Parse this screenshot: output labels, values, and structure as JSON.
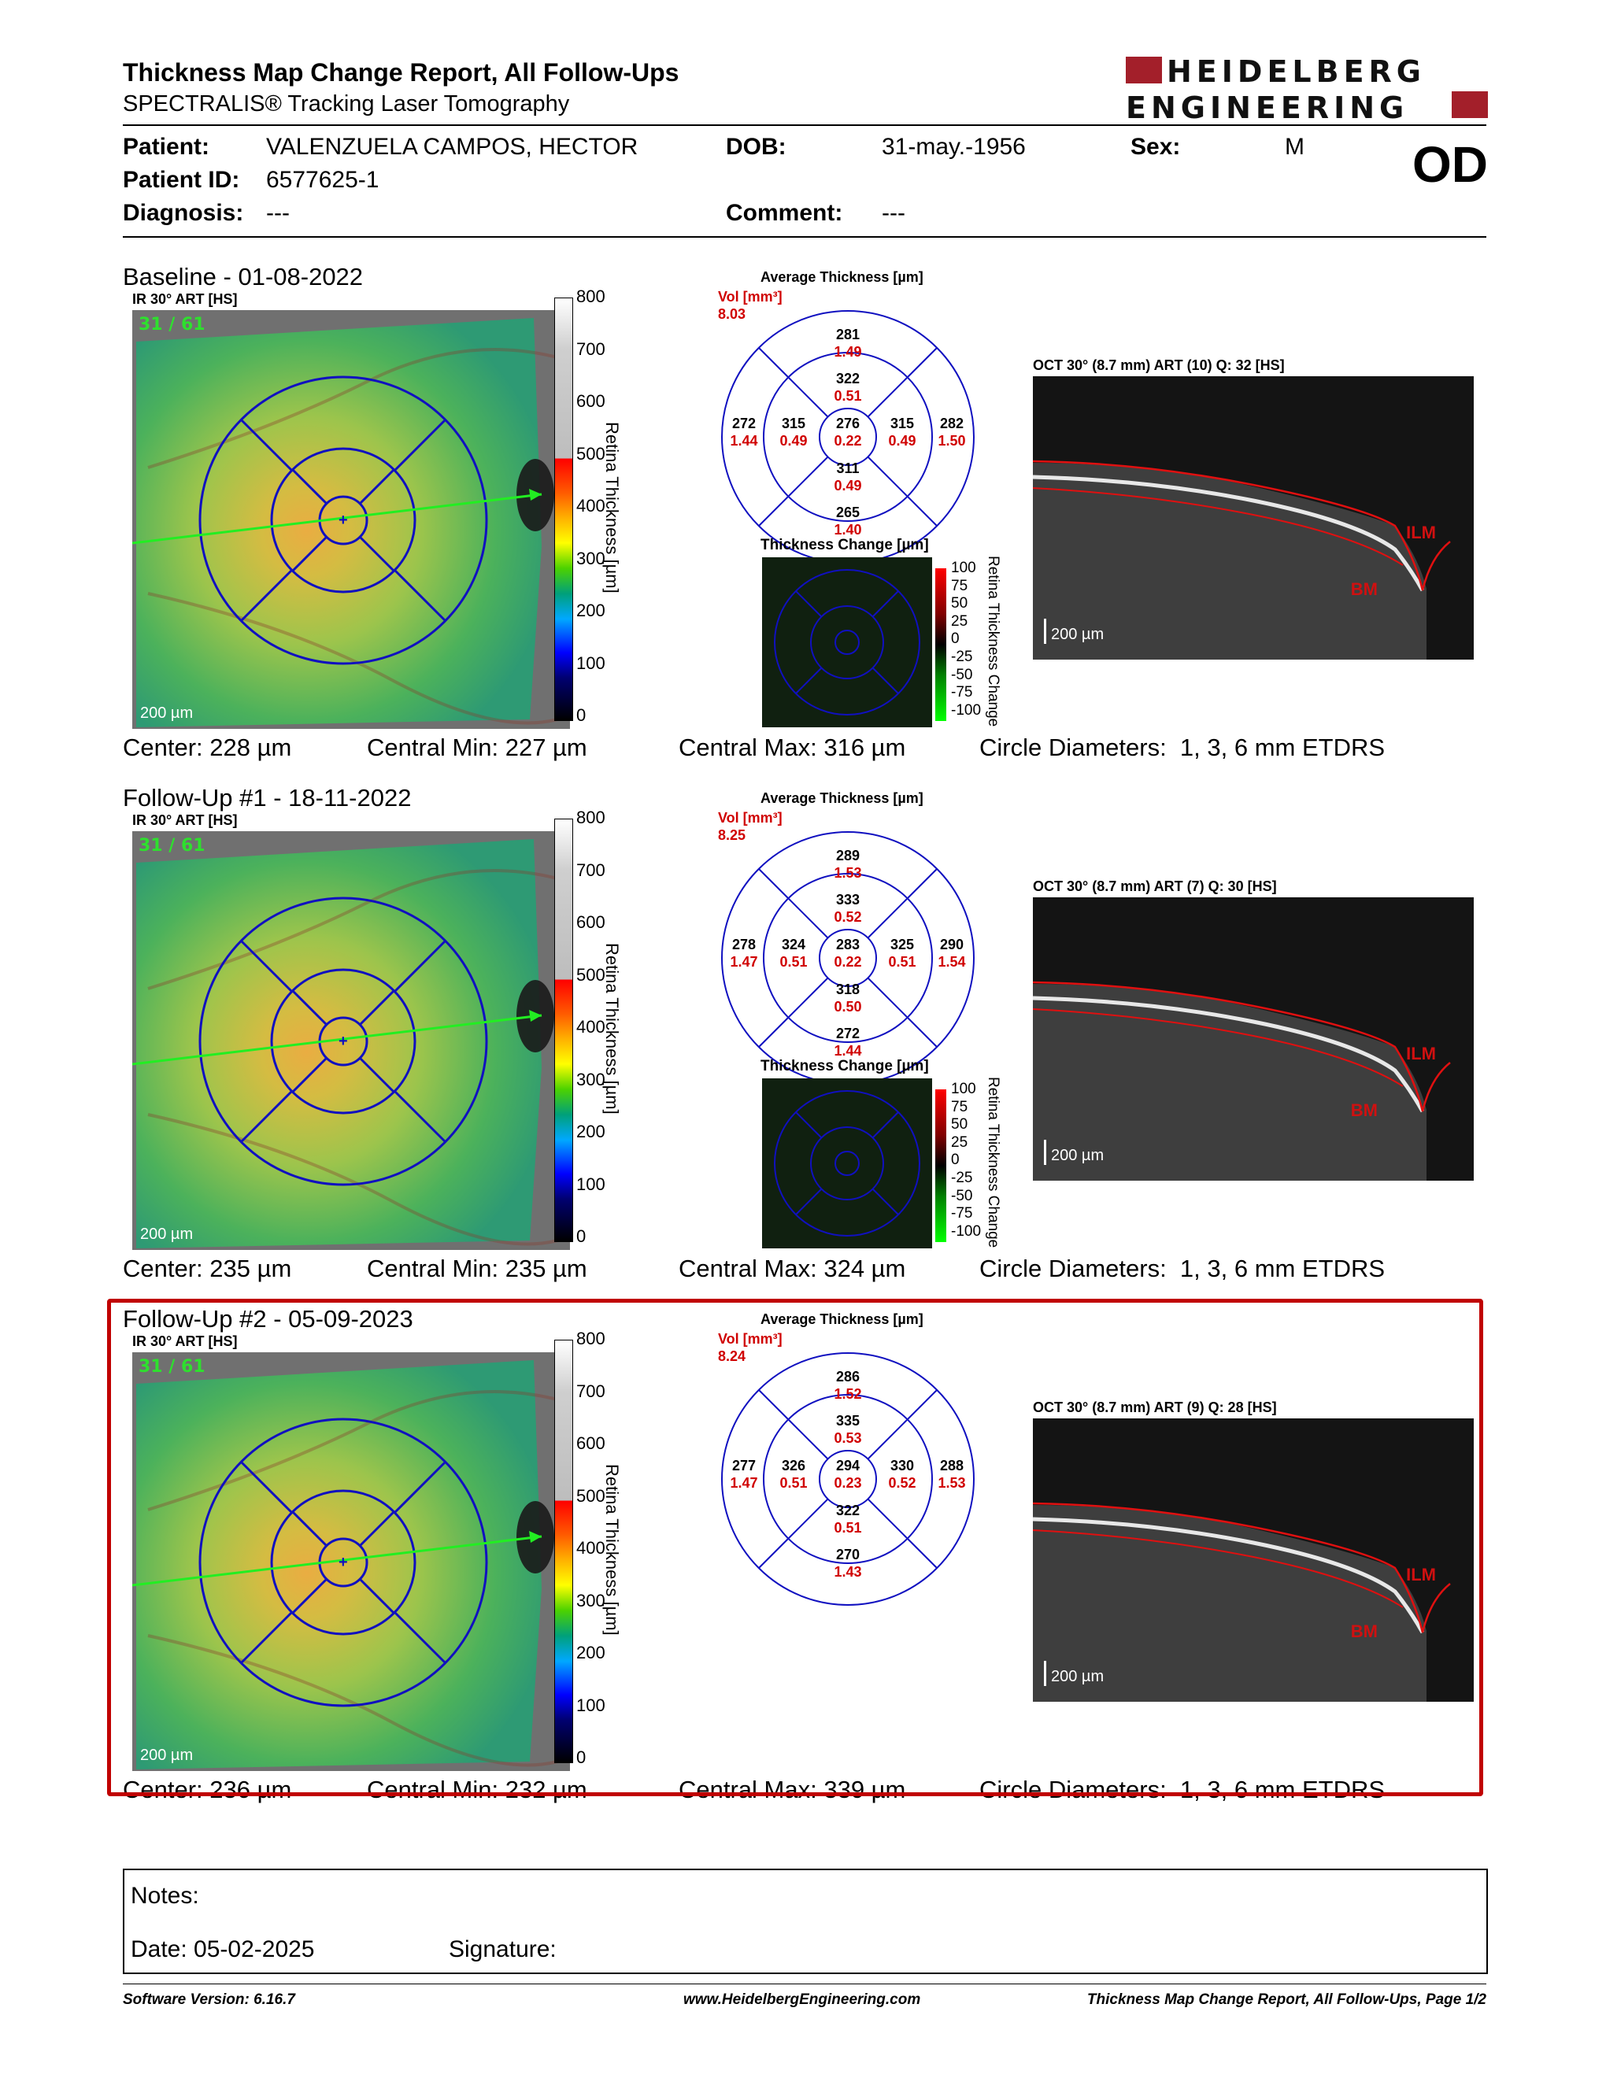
{
  "header": {
    "title": "Thickness Map Change Report, All Follow-Ups",
    "subtitle": "SPECTRALIS® Tracking Laser Tomography",
    "logo_line1": "HEIDELBERG",
    "logo_line2": "ENGINEERING",
    "brand_color": "#a31f2a"
  },
  "patient": {
    "patient_label": "Patient:",
    "patient_value": "VALENZUELA CAMPOS, HECTOR",
    "dob_label": "DOB:",
    "dob_value": "31-may.-1956",
    "sex_label": "Sex:",
    "sex_value": "M",
    "id_label": "Patient ID:",
    "id_value": "6577625-1",
    "diagnosis_label": "Diagnosis:",
    "diagnosis_value": "---",
    "comment_label": "Comment:",
    "comment_value": "---",
    "eye": "OD"
  },
  "common": {
    "ir_title": "IR 30° ART [HS]",
    "fix_count": "31 / 61",
    "scale_200": "200 µm",
    "colorbar_ticks": [
      "800",
      "700",
      "600",
      "500",
      "400",
      "300",
      "200",
      "100",
      "0"
    ],
    "colorbar_label": "Retina Thickness [µm]",
    "avg_title": "Average Thickness [µm]",
    "vol_label": "Vol [mm³]",
    "change_title": "Thickness Change [µm]",
    "change_ticks": [
      "100",
      "75",
      "50",
      "25",
      "0",
      "-25",
      "-50",
      "-75",
      "-100"
    ],
    "change_label": "Retina Thickness Change",
    "circle_label": "Circle Diameters:  1, 3, 6 mm ETDRS",
    "ilm": "ILM",
    "bm": "BM"
  },
  "exams": [
    {
      "title": "Baseline - 01-08-2022",
      "vol": "8.03",
      "oct_title": "OCT 30° (8.7 mm) ART (10) Q: 32 [HS]",
      "etdrs": {
        "outer_sup": [
          "281",
          "1.49"
        ],
        "inner_sup": [
          "322",
          "0.51"
        ],
        "outer_temp": [
          "272",
          "1.44"
        ],
        "inner_temp": [
          "315",
          "0.49"
        ],
        "center": [
          "276",
          "0.22"
        ],
        "inner_nasal": [
          "315",
          "0.49"
        ],
        "outer_nasal": [
          "282",
          "1.50"
        ],
        "inner_inf": [
          "311",
          "0.49"
        ],
        "outer_inf": [
          "265",
          "1.40"
        ]
      },
      "center": "Center: 228 µm",
      "central_min": "Central Min: 227 µm",
      "central_max": "Central Max: 316 µm",
      "has_change": true
    },
    {
      "title": "Follow-Up #1 - 18-11-2022",
      "vol": "8.25",
      "oct_title": "OCT 30° (8.7 mm) ART (7) Q: 30 [HS]",
      "etdrs": {
        "outer_sup": [
          "289",
          "1.53"
        ],
        "inner_sup": [
          "333",
          "0.52"
        ],
        "outer_temp": [
          "278",
          "1.47"
        ],
        "inner_temp": [
          "324",
          "0.51"
        ],
        "center": [
          "283",
          "0.22"
        ],
        "inner_nasal": [
          "325",
          "0.51"
        ],
        "outer_nasal": [
          "290",
          "1.54"
        ],
        "inner_inf": [
          "318",
          "0.50"
        ],
        "outer_inf": [
          "272",
          "1.44"
        ]
      },
      "center": "Center: 235 µm",
      "central_min": "Central Min: 235 µm",
      "central_max": "Central Max: 324 µm",
      "has_change": true
    },
    {
      "title": "Follow-Up #2 - 05-09-2023",
      "vol": "8.24",
      "oct_title": "OCT 30° (8.7 mm) ART (9) Q: 28 [HS]",
      "etdrs": {
        "outer_sup": [
          "286",
          "1.52"
        ],
        "inner_sup": [
          "335",
          "0.53"
        ],
        "outer_temp": [
          "277",
          "1.47"
        ],
        "inner_temp": [
          "326",
          "0.51"
        ],
        "center": [
          "294",
          "0.23"
        ],
        "inner_nasal": [
          "330",
          "0.52"
        ],
        "outer_nasal": [
          "288",
          "1.53"
        ],
        "inner_inf": [
          "322",
          "0.51"
        ],
        "outer_inf": [
          "270",
          "1.43"
        ]
      },
      "center": "Center: 236 µm",
      "central_min": "Central Min: 232 µm",
      "central_max": "Central Max: 339 µm",
      "has_change": false
    }
  ],
  "notes": {
    "notes_label": "Notes:",
    "date_label": "Date: 05-02-2025",
    "signature_label": "Signature:"
  },
  "footer": {
    "software": "Software Version: 6.16.7",
    "website": "www.HeidelbergEngineering.com",
    "page": "Thickness Map Change Report, All Follow-Ups, Page 1/2"
  }
}
